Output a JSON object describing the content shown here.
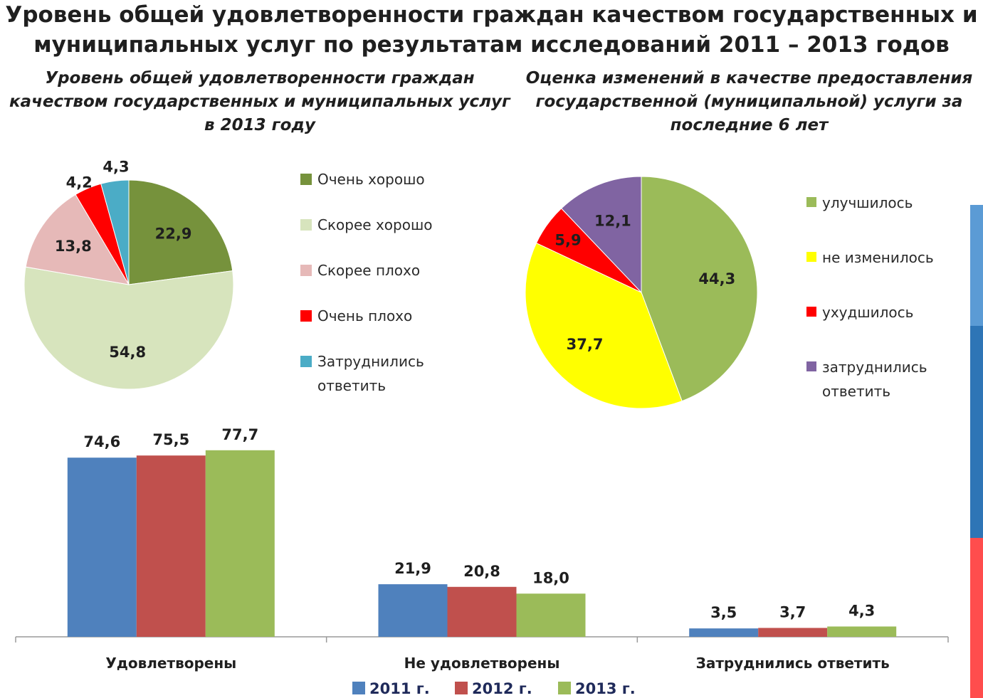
{
  "title": "Уровень общей удовлетворенности граждан качеством государственных и муниципальных услуг по результатам исследований 2011 – 2013 годов",
  "chart_data": [
    {
      "type": "pie",
      "title": "Уровень общей удовлетворенности граждан качеством государственных и муниципальных услуг в 2013 году",
      "categories": [
        "Очень хорошо",
        "Скорее хорошо",
        "Скорее плохо",
        "Очень плохо",
        "Затруднились ответить"
      ],
      "values": [
        22.9,
        54.8,
        13.8,
        4.2,
        4.3
      ],
      "value_labels": [
        "22,9",
        "54,8",
        "13,8",
        "4,2",
        "4,3"
      ],
      "colors": [
        "#76923c",
        "#d7e4bd",
        "#e6b9b8",
        "#ff0000",
        "#4bacc6"
      ],
      "legend_position": "right"
    },
    {
      "type": "pie",
      "title": "Оценка изменений в качестве предоставления государственной (муниципальной) услуги за последние 6 лет",
      "categories": [
        "улучшилось",
        "не изменилось",
        "ухудшилось",
        "затруднились ответить"
      ],
      "values": [
        44.3,
        37.7,
        5.9,
        12.1
      ],
      "value_labels": [
        "44,3",
        "37,7",
        "5,9",
        "12,1"
      ],
      "colors": [
        "#9bbb59",
        "#ffff00",
        "#ff0000",
        "#8064a2"
      ],
      "legend_position": "right"
    },
    {
      "type": "bar",
      "categories": [
        "Удовлетворены",
        "Не удовлетворены",
        "Затруднились ответить"
      ],
      "series": [
        {
          "name": "2011 г.",
          "values": [
            74.6,
            21.9,
            3.5
          ],
          "labels": [
            "74,6",
            "21,9",
            "3,5"
          ],
          "color": "#4f81bd"
        },
        {
          "name": "2012 г.",
          "values": [
            75.5,
            20.8,
            3.7
          ],
          "labels": [
            "75,5",
            "20,8",
            "3,7"
          ],
          "color": "#c0504d"
        },
        {
          "name": "2013 г.",
          "values": [
            77.7,
            18.0,
            4.3
          ],
          "labels": [
            "77,7",
            "18,0",
            "4,3"
          ],
          "color": "#9bbb59"
        }
      ],
      "ylim": [
        0,
        80
      ],
      "grid": false,
      "legend_position": "bottom"
    }
  ]
}
